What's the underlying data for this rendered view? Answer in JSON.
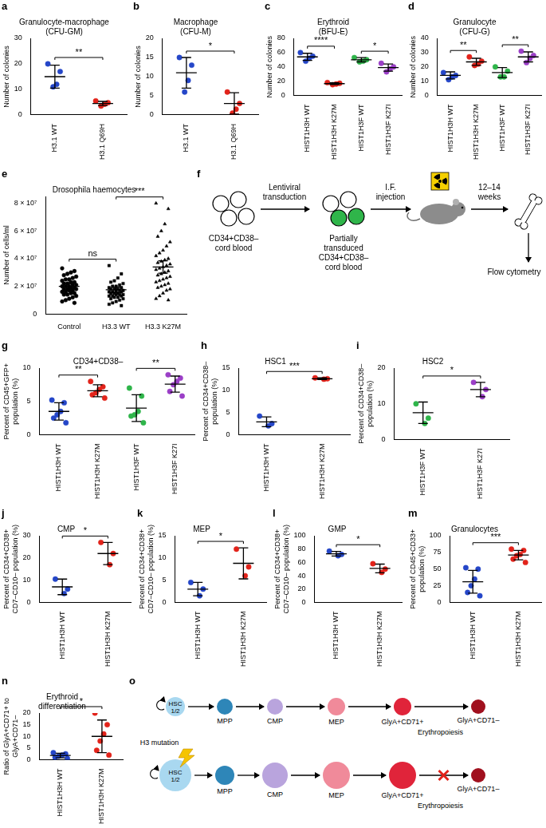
{
  "chart_data": [
    {
      "panel": "a",
      "type": "scatter",
      "title": [
        "Granulocyte-macrophage",
        "(CFU-GM)"
      ],
      "ylabel": "Number of colonies",
      "categories": [
        "H3.1 WT",
        "H3.1 Q69H"
      ],
      "points": [
        [
          20,
          17,
          12,
          11
        ],
        [
          5.5,
          4.8,
          4.2,
          3.5
        ]
      ],
      "means": [
        15,
        4.5
      ],
      "errors": [
        4.5,
        0.8
      ],
      "colors": [
        "#2546c8",
        "#e2231a"
      ],
      "markers": [
        "circle",
        "circle"
      ],
      "ylim": [
        0,
        30
      ],
      "yticks": [
        0,
        10,
        20,
        30
      ],
      "grid": false,
      "annotations": [
        {
          "text": "**",
          "between": [
            "H3.1 WT",
            "H3.1 Q69H"
          ]
        }
      ]
    },
    {
      "panel": "b",
      "type": "scatter",
      "title": [
        "Macrophage",
        "(CFU-M)"
      ],
      "ylabel": "Number of colonies",
      "categories": [
        "H3.1 WT",
        "H3.1 Q69H"
      ],
      "points": [
        [
          15,
          13,
          9,
          6
        ],
        [
          6,
          3,
          1.5,
          0.5
        ]
      ],
      "means": [
        11,
        3
      ],
      "errors": [
        4,
        2.8
      ],
      "colors": [
        "#2546c8",
        "#e2231a"
      ],
      "markers": [
        "circle",
        "circle"
      ],
      "ylim": [
        0,
        20
      ],
      "yticks": [
        0,
        5,
        10,
        15,
        20
      ],
      "grid": false,
      "annotations": [
        {
          "text": "*",
          "between": [
            "H3.1 WT",
            "H3.1 Q69H"
          ]
        }
      ]
    },
    {
      "panel": "c",
      "type": "scatter",
      "title": [
        "Erythroid",
        "(BFU-E)"
      ],
      "ylabel": "Number of colonies",
      "categories": [
        "HIST1H3H WT",
        "HIST1H3H K27M",
        "HIST1H3F WT",
        "HIST1H3F K27I"
      ],
      "points": [
        [
          60,
          55,
          52,
          48
        ],
        [
          18,
          17,
          16,
          15
        ],
        [
          53,
          50,
          48,
          47
        ],
        [
          45,
          40,
          37,
          33
        ]
      ],
      "means": [
        54,
        16.5,
        50,
        39
      ],
      "errors": [
        5,
        1.3,
        3,
        5
      ],
      "colors": [
        "#2546c8",
        "#e2231a",
        "#2fb54a",
        "#9b3fc7"
      ],
      "markers": [
        "circle",
        "circle",
        "circle",
        "circle"
      ],
      "ylim": [
        0,
        80
      ],
      "yticks": [
        0,
        20,
        40,
        60,
        80
      ],
      "grid": false,
      "annotations": [
        {
          "text": "****",
          "between": [
            "HIST1H3H WT",
            "HIST1H3H K27M"
          ]
        },
        {
          "text": "*",
          "between": [
            "HIST1H3F WT",
            "HIST1H3F K27I"
          ]
        }
      ]
    },
    {
      "panel": "d",
      "type": "scatter",
      "title": [
        "Granulocyte",
        "(CFU-G)"
      ],
      "ylabel": "Number of colonies",
      "categories": [
        "HIST1H3H WT",
        "HIST1H3H K27M",
        "HIST1H3F WT",
        "HIST1H3F K27I"
      ],
      "points": [
        [
          16,
          14,
          13,
          11
        ],
        [
          27,
          24,
          22,
          21
        ],
        [
          20,
          17,
          13,
          13
        ],
        [
          31,
          28,
          26,
          23
        ]
      ],
      "means": [
        14,
        23.5,
        16,
        27
      ],
      "errors": [
        2.5,
        2.5,
        3.5,
        3.5
      ],
      "colors": [
        "#2546c8",
        "#e2231a",
        "#2fb54a",
        "#9b3fc7"
      ],
      "markers": [
        "circle",
        "circle",
        "circle",
        "circle"
      ],
      "ylim": [
        0,
        40
      ],
      "yticks": [
        0,
        10,
        20,
        30,
        40
      ],
      "grid": false,
      "annotations": [
        {
          "text": "**",
          "between": [
            "HIST1H3H WT",
            "HIST1H3H K27M"
          ]
        },
        {
          "text": "**",
          "between": [
            "HIST1H3F WT",
            "HIST1H3F K27I"
          ]
        }
      ]
    },
    {
      "panel": "e",
      "type": "scatter",
      "title": "Drosophila haemocytes",
      "ylabel": "Number of cells/ml",
      "categories": [
        "Control",
        "H3.3 WT",
        "H3.3 K27M"
      ],
      "points": [
        [
          33000000.0,
          31000000.0,
          30000000.0,
          29000000.0,
          28000000.0,
          27000000.0,
          26000000.0,
          25000000.0,
          25000000.0,
          24000000.0,
          23000000.0,
          23000000.0,
          22000000.0,
          22000000.0,
          21000000.0,
          21000000.0,
          20000000.0,
          20000000.0,
          20000000.0,
          19000000.0,
          19000000.0,
          18000000.0,
          18000000.0,
          18000000.0,
          17000000.0,
          17000000.0,
          16000000.0,
          16000000.0,
          15000000.0,
          15000000.0,
          14000000.0,
          14000000.0,
          13000000.0,
          12000000.0,
          11000000.0,
          10000000.0,
          9000000.0,
          8000000.0
        ],
        [
          35000000.0,
          29000000.0,
          26000000.0,
          24000000.0,
          23000000.0,
          22000000.0,
          21000000.0,
          20000000.0,
          20000000.0,
          19000000.0,
          19000000.0,
          18000000.0,
          18000000.0,
          18000000.0,
          17000000.0,
          17000000.0,
          17000000.0,
          16000000.0,
          16000000.0,
          16000000.0,
          15000000.0,
          15000000.0,
          15000000.0,
          14000000.0,
          14000000.0,
          14000000.0,
          13000000.0,
          13000000.0,
          13000000.0,
          12000000.0,
          12000000.0,
          11000000.0,
          11000000.0,
          10000000.0,
          9000000.0,
          8000000.0,
          7000000.0,
          6000000.0
        ],
        [
          80000000.0,
          76000000.0,
          65000000.0,
          60000000.0,
          56000000.0,
          52000000.0,
          49000000.0,
          46000000.0,
          44000000.0,
          42000000.0,
          40000000.0,
          39000000.0,
          38000000.0,
          37000000.0,
          36000000.0,
          35000000.0,
          34000000.0,
          33000000.0,
          32000000.0,
          31000000.0,
          30000000.0,
          29000000.0,
          28000000.0,
          27000000.0,
          26000000.0,
          25000000.0,
          24000000.0,
          23000000.0,
          22000000.0,
          21000000.0,
          20000000.0,
          19000000.0,
          18000000.0,
          17000000.0,
          15000000.0,
          13000000.0,
          11000000.0,
          10000000.0
        ]
      ],
      "means": [
        20000000.0,
        17500000.0,
        34000000.0
      ],
      "errors": [
        2000000.0,
        2000000.0,
        4500000.0
      ],
      "colors": [
        "#000000",
        "#000000",
        "#000000"
      ],
      "markers": [
        "circle",
        "square",
        "triangle"
      ],
      "ylim": [
        0,
        85000000.0
      ],
      "yticks": [
        0,
        {
          "value": 20000000.0,
          "label": "2 × 10⁷"
        },
        {
          "value": 40000000.0,
          "label": "4 × 10⁷"
        },
        {
          "value": 60000000.0,
          "label": "6 × 10⁷"
        },
        {
          "value": 80000000.0,
          "label": "8 × 10⁷"
        }
      ],
      "grid": false,
      "annotations": [
        {
          "text": "ns",
          "between": [
            "Control",
            "H3.3 WT"
          ]
        },
        {
          "text": "***",
          "between": [
            "H3.3 WT",
            "H3.3 K27M"
          ]
        }
      ]
    },
    {
      "panel": "g",
      "type": "scatter",
      "title": "CD34+CD38–",
      "ylabel": [
        "Percent of CD45+GFP+",
        "population (%)"
      ],
      "categories": [
        "HIST1H3H WT",
        "HIST1H3H K27M",
        "HIST1H3F WT",
        "HIST1H3F K27I"
      ],
      "points": [
        [
          5.2,
          4.8,
          3.5,
          3.0,
          2.5,
          1.8
        ],
        [
          8.0,
          7.2,
          6.8,
          6.3,
          6.0,
          5.5
        ],
        [
          7.0,
          5.8,
          3.5,
          3.0,
          2.8,
          1.8
        ],
        [
          9.0,
          8.5,
          8.0,
          7.5,
          6.5,
          5.8
        ]
      ],
      "means": [
        3.5,
        6.6,
        4,
        7.6
      ],
      "errors": [
        1.3,
        0.9,
        2,
        1.2
      ],
      "colors": [
        "#2546c8",
        "#e2231a",
        "#2fb54a",
        "#9b3fc7"
      ],
      "markers": [
        "circle",
        "circle",
        "circle",
        "circle"
      ],
      "ylim": [
        0,
        10
      ],
      "yticks": [
        0,
        5,
        10
      ],
      "grid": false,
      "annotations": [
        {
          "text": "**",
          "between": [
            "HIST1H3H WT",
            "HIST1H3H K27M"
          ]
        },
        {
          "text": "**",
          "between": [
            "HIST1H3F WT",
            "HIST1H3F K27I"
          ]
        }
      ]
    },
    {
      "panel": "h",
      "type": "scatter",
      "title": "HSC1",
      "ylabel": [
        "Percent of CD34+CD38–",
        "population (%)"
      ],
      "categories": [
        "HIST1H3H WT",
        "HIST1H3H K27M"
      ],
      "points": [
        [
          4.2,
          2.5,
          2.0
        ],
        [
          12.8,
          12.6,
          12.5
        ]
      ],
      "means": [
        2.9,
        12.6
      ],
      "errors": [
        1.1,
        0.2
      ],
      "colors": [
        "#2546c8",
        "#e2231a"
      ],
      "markers": [
        "circle",
        "circle"
      ],
      "ylim": [
        0,
        15
      ],
      "yticks": [
        0,
        5,
        10,
        15
      ],
      "grid": false,
      "annotations": [
        {
          "text": "***",
          "between": [
            "HIST1H3H WT",
            "HIST1H3H K27M"
          ]
        }
      ]
    },
    {
      "panel": "i",
      "type": "scatter",
      "title": "HSC2",
      "ylabel": [
        "Percent of CD34+CD38–",
        "population (%)"
      ],
      "categories": [
        "HIST1H3F WT",
        "HIST1H3F K27I"
      ],
      "points": [
        [
          10,
          6,
          4.5
        ],
        [
          16,
          14,
          12
        ]
      ],
      "means": [
        7.5,
        14
      ],
      "errors": [
        3,
        2
      ],
      "colors": [
        "#2fb54a",
        "#9b3fc7"
      ],
      "markers": [
        "circle",
        "circle"
      ],
      "ylim": [
        0,
        20
      ],
      "yticks": [
        0,
        10,
        20
      ],
      "grid": false,
      "annotations": [
        {
          "text": "*",
          "between": [
            "HIST1H3F WT",
            "HIST1H3F K27I"
          ]
        }
      ]
    },
    {
      "panel": "j",
      "type": "scatter",
      "title": "CMP",
      "ylabel": [
        "Percent of CD34+CD38+",
        "CD7–CD10– population (%)"
      ],
      "categories": [
        "HIST1H3H WT",
        "HIST1H3H K27M"
      ],
      "points": [
        [
          10.5,
          6,
          4
        ],
        [
          27,
          22,
          17
        ]
      ],
      "means": [
        7,
        22
      ],
      "errors": [
        3.5,
        5
      ],
      "colors": [
        "#2546c8",
        "#e2231a"
      ],
      "markers": [
        "circle",
        "circle"
      ],
      "ylim": [
        0,
        30
      ],
      "yticks": [
        0,
        10,
        20,
        30
      ],
      "grid": false,
      "annotations": [
        {
          "text": "*",
          "between": [
            "HIST1H3H WT",
            "HIST1H3H K27M"
          ]
        }
      ]
    },
    {
      "panel": "k",
      "type": "scatter",
      "title": "MEP",
      "ylabel": [
        "Percent of CD34+CD38+",
        "CD7–CD10– population (%)"
      ],
      "categories": [
        "HIST1H3H WT",
        "HIST1H3H K27M"
      ],
      "points": [
        [
          4.5,
          3,
          1.5
        ],
        [
          12,
          8,
          6
        ]
      ],
      "means": [
        3,
        8.8
      ],
      "errors": [
        1.5,
        3.5
      ],
      "colors": [
        "#2546c8",
        "#e2231a"
      ],
      "markers": [
        "circle",
        "circle"
      ],
      "ylim": [
        0,
        15
      ],
      "yticks": [
        0,
        5,
        10,
        15
      ],
      "grid": false,
      "annotations": [
        {
          "text": "*",
          "between": [
            "HIST1H3H WT",
            "HIST1H3H K27M"
          ]
        }
      ]
    },
    {
      "panel": "l",
      "type": "scatter",
      "title": "GMP",
      "ylabel": [
        "Percent of CD34+CD38+",
        "CD7–CD10– population (%)"
      ],
      "categories": [
        "HIST1H3H WT",
        "HIST1H3H K27M"
      ],
      "points": [
        [
          77,
          72,
          70
        ],
        [
          58,
          50,
          45
        ]
      ],
      "means": [
        73,
        51
      ],
      "errors": [
        3.5,
        6.5
      ],
      "colors": [
        "#2546c8",
        "#e2231a"
      ],
      "markers": [
        "circle",
        "circle"
      ],
      "ylim": [
        0,
        100
      ],
      "yticks": [
        0,
        20,
        40,
        60,
        80,
        100
      ],
      "grid": false,
      "annotations": [
        {
          "text": "*",
          "between": [
            "HIST1H3H WT",
            "HIST1H3H K27M"
          ]
        }
      ]
    },
    {
      "panel": "m",
      "type": "scatter",
      "title": "Granulocytes",
      "ylabel": [
        "Percent of CD45+CD33+",
        "population (%)"
      ],
      "categories": [
        "HIST1H3H WT",
        "HIST1H3H K27M"
      ],
      "points": [
        [
          52,
          50,
          35,
          25,
          15,
          10
        ],
        [
          80,
          78,
          72,
          70,
          65,
          60
        ]
      ],
      "means": [
        31,
        71
      ],
      "errors": [
        17,
        7
      ],
      "colors": [
        "#2546c8",
        "#e2231a"
      ],
      "markers": [
        "circle",
        "circle"
      ],
      "ylim": [
        0,
        100
      ],
      "yticks": [
        0,
        25,
        50,
        75,
        100
      ],
      "grid": false,
      "annotations": [
        {
          "text": "***",
          "between": [
            "HIST1H3H WT",
            "HIST1H3H K27M"
          ]
        }
      ]
    },
    {
      "panel": "n",
      "type": "scatter",
      "title": [
        "Erythroid",
        "differentiation"
      ],
      "ylabel": [
        "Ratio of GlyA+CD71+ to",
        "GlyA+CD71–"
      ],
      "categories": [
        "HIST1H3H WT",
        "HIST1H3H K27M"
      ],
      "points": [
        [
          3,
          2.5,
          2,
          1.5,
          1,
          0.5
        ],
        [
          20,
          15,
          11,
          8,
          4,
          2
        ]
      ],
      "means": [
        1.8,
        10
      ],
      "errors": [
        1,
        7
      ],
      "colors": [
        "#2546c8",
        "#e2231a"
      ],
      "markers": [
        "circle",
        "circle"
      ],
      "ylim": [
        0,
        20
      ],
      "yticks": [
        0,
        5,
        10,
        15,
        20
      ],
      "grid": false,
      "annotations": [
        {
          "text": "*",
          "between": [
            "HIST1H3H WT",
            "HIST1H3H K27M"
          ]
        }
      ]
    }
  ],
  "diagram_f": {
    "panel": "f",
    "start_cells": [
      "CD34+CD38–",
      "cord blood"
    ],
    "step1": [
      "Lentiviral",
      "transduction"
    ],
    "mid_cells": [
      "Partially",
      "transduced",
      "CD34+CD38–",
      "cord blood"
    ],
    "step2": [
      "I.F.",
      "injection"
    ],
    "step3": [
      "12–14",
      "weeks"
    ],
    "step4": "Flow cytometry"
  },
  "diagram_o": {
    "panel": "o",
    "note": "Erythropoiesis",
    "trigger": "H3 mutation",
    "nodes": [
      {
        "label": [
          "HSC",
          "1/2"
        ],
        "color": "#a9d8f0"
      },
      {
        "label": "MPP",
        "color": "#2e86b8"
      },
      {
        "label": "CMP",
        "color": "#b9a4dd"
      },
      {
        "label": "MEP",
        "color": "#f08a9a"
      },
      {
        "label": "GlyA+CD71+",
        "color": "#e0243a"
      },
      {
        "label": "GlyA+CD71–",
        "color": "#a0101e"
      }
    ]
  }
}
